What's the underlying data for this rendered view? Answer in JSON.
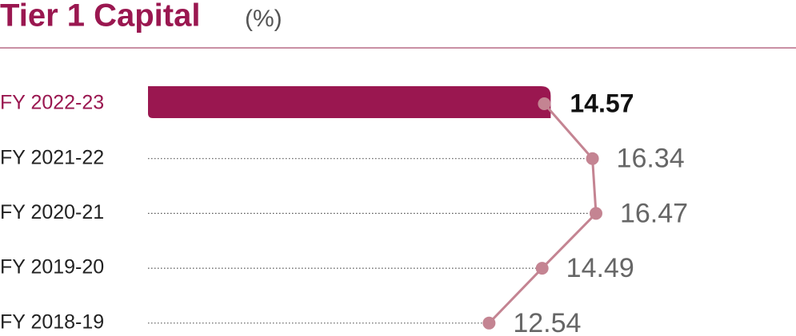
{
  "chart_data": {
    "type": "bar",
    "title": "Tier 1 Capital",
    "subtitle": "(%)",
    "categories": [
      "FY 2022-23",
      "FY 2021-22",
      "FY 2020-21",
      "FY 2019-20",
      "FY 2018-19"
    ],
    "values": [
      14.57,
      16.34,
      16.47,
      14.49,
      12.54
    ],
    "color": "#9a1750",
    "line_color": "#c48492"
  }
}
